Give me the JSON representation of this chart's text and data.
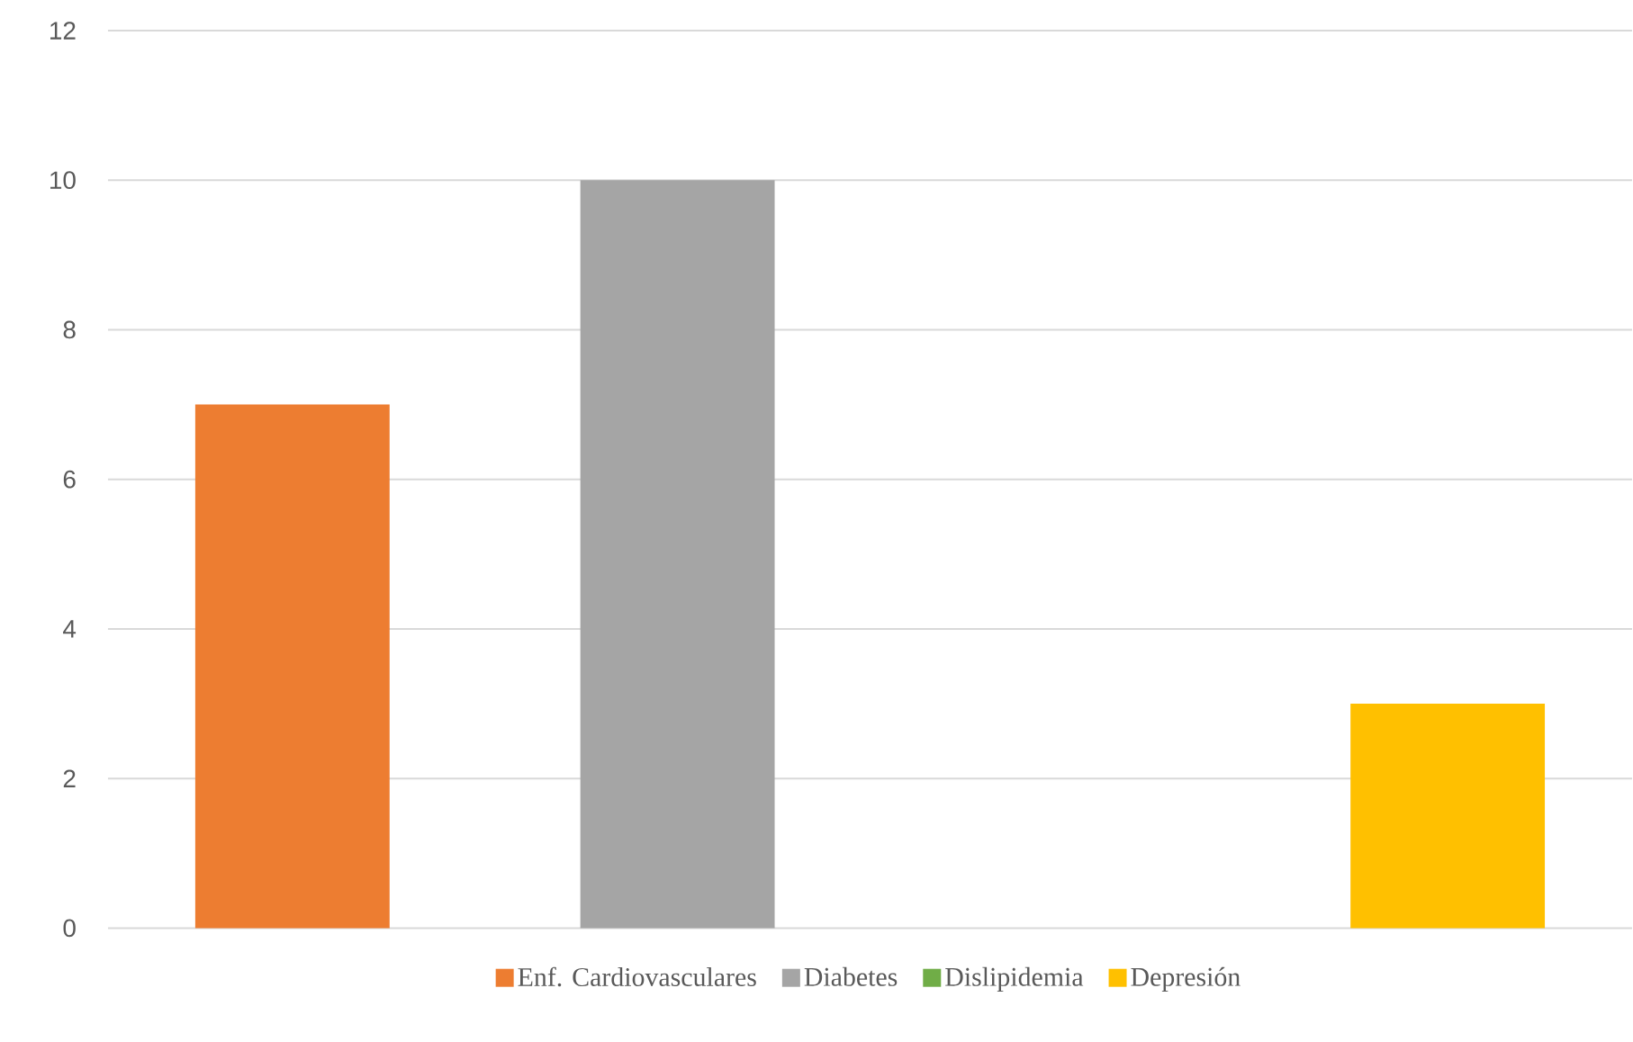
{
  "chart_data": {
    "type": "bar",
    "categories": [
      null
    ],
    "series": [
      {
        "name": "Enf. Cardiovasculares",
        "color": "#ed7d31",
        "values": [
          7
        ]
      },
      {
        "name": "Diabetes",
        "color": "#a5a5a5",
        "values": [
          10
        ]
      },
      {
        "name": "Dislipidemia",
        "color": "#70ad47",
        "values": [
          0
        ]
      },
      {
        "name": "Depresión",
        "color": "#ffc000",
        "values": [
          3
        ]
      }
    ],
    "ylim": [
      0,
      12
    ],
    "yticks": [
      0,
      2,
      4,
      6,
      8,
      10,
      12
    ],
    "grid": "y",
    "legend": "bottom"
  }
}
